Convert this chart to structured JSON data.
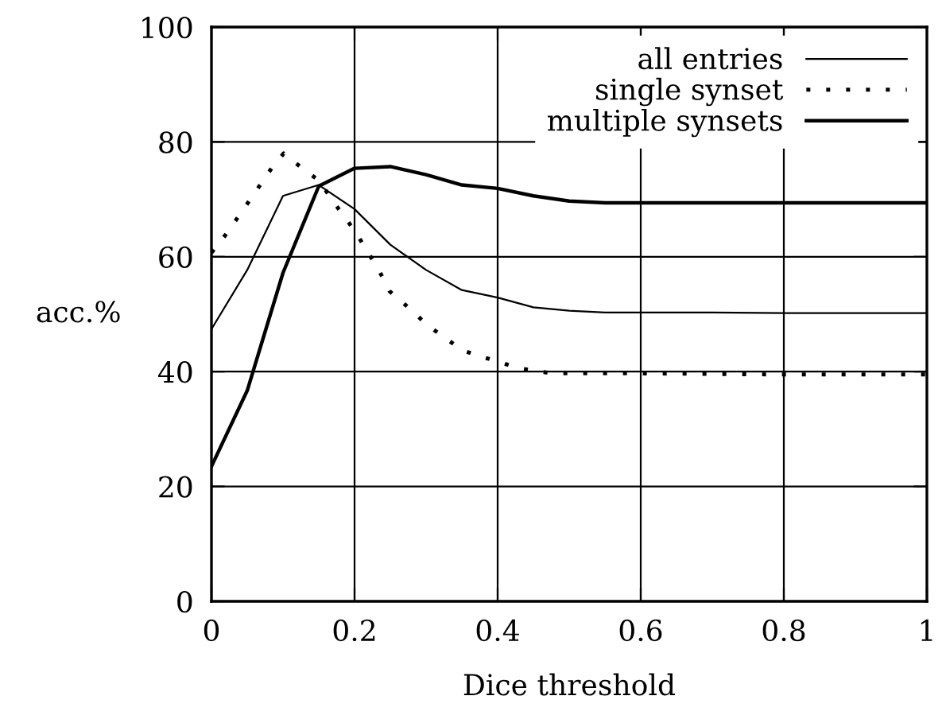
{
  "chart_data": {
    "type": "line",
    "xlabel": "Dice threshold",
    "ylabel": "acc.%",
    "xlim": [
      0,
      1
    ],
    "ylim": [
      0,
      100
    ],
    "xticks": [
      0,
      0.2,
      0.4,
      0.6,
      0.8,
      1
    ],
    "yticks": [
      0,
      20,
      40,
      60,
      80,
      100
    ],
    "grid": true,
    "legend": "top right",
    "marker": "none",
    "series": [
      {
        "name": "all entries",
        "color": "#000000",
        "line_style": "solid",
        "x": [
          0,
          0.05,
          0.1,
          0.15,
          0.2,
          0.25,
          0.3,
          0.35,
          0.4,
          0.45,
          0.5,
          0.55,
          0.6,
          0.7,
          0.8,
          0.9,
          1
        ],
        "values": [
          47.4,
          57.7,
          70.6,
          72.5,
          68.3,
          62.1,
          57.7,
          54.2,
          52.9,
          51.2,
          50.6,
          50.3,
          50.3,
          50.3,
          50.2,
          50.2,
          50.2
        ]
      },
      {
        "name": "single synset",
        "color": "#000000",
        "line_style": "dotted",
        "x": [
          0,
          0.019,
          0.036,
          0.051,
          0.068,
          0.084,
          0.101,
          0.124,
          0.151,
          0.168,
          0.185,
          0.202,
          0.217,
          0.233,
          0.249,
          0.273,
          0.302,
          0.325,
          0.351,
          0.38,
          0.402,
          0.429,
          0.476,
          0.5,
          0.6,
          0.7,
          0.8,
          0.9,
          1
        ],
        "values": [
          60.7,
          63.7,
          66.7,
          69.4,
          72.5,
          75.4,
          78.0,
          75.7,
          73.2,
          70.0,
          67.1,
          64.2,
          61.1,
          57.9,
          54.0,
          51.4,
          48.1,
          46.0,
          43.7,
          42.5,
          41.7,
          40.6,
          39.7,
          39.7,
          39.7,
          39.6,
          39.5,
          39.5,
          39.5
        ]
      },
      {
        "name": "multiple synsets",
        "color": "#000000",
        "line_style": "solid",
        "x": [
          0,
          0.05,
          0.1,
          0.15,
          0.2,
          0.25,
          0.3,
          0.35,
          0.4,
          0.45,
          0.5,
          0.55,
          0.6,
          0.7,
          0.8,
          0.9,
          1
        ],
        "values": [
          23.5,
          36.7,
          57.2,
          72.3,
          75.4,
          75.7,
          74.3,
          72.5,
          71.9,
          70.6,
          69.7,
          69.4,
          69.4,
          69.4,
          69.4,
          69.4,
          69.4
        ]
      }
    ]
  }
}
